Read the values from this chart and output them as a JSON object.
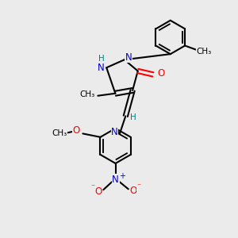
{
  "bg_color": "#ebebeb",
  "bond_color": "#000000",
  "N_color": "#0000cd",
  "O_color": "#ff0000",
  "H_color": "#008080",
  "figsize": [
    3.0,
    3.0
  ],
  "dpi": 100,
  "xlim": [
    0,
    10
  ],
  "ylim": [
    0,
    10
  ]
}
